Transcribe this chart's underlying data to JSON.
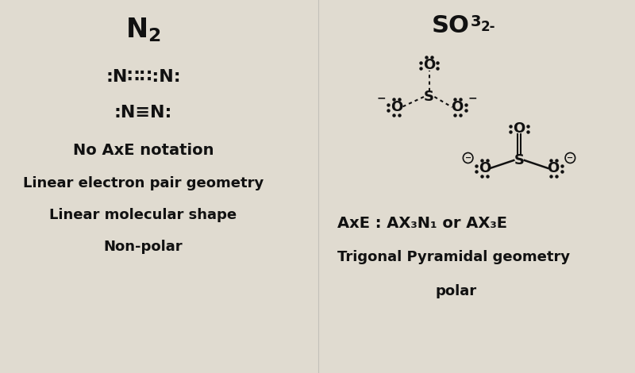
{
  "bg_color": "#e0dbd0",
  "text_color": "#111111",
  "n2_lewis1": ":N∷∷:N:",
  "n2_lewis2": ":N≡N:",
  "n2_note1": "No AxE notation",
  "n2_note2": "Linear electron pair geometry",
  "n2_note3": "Linear molecular shape",
  "n2_note4": "Non-polar",
  "axe_right": "AxE : AX₃N₁ or AX₃E",
  "geo_right": "Trigonal Pyramidal geometry",
  "polar_right": "polar"
}
